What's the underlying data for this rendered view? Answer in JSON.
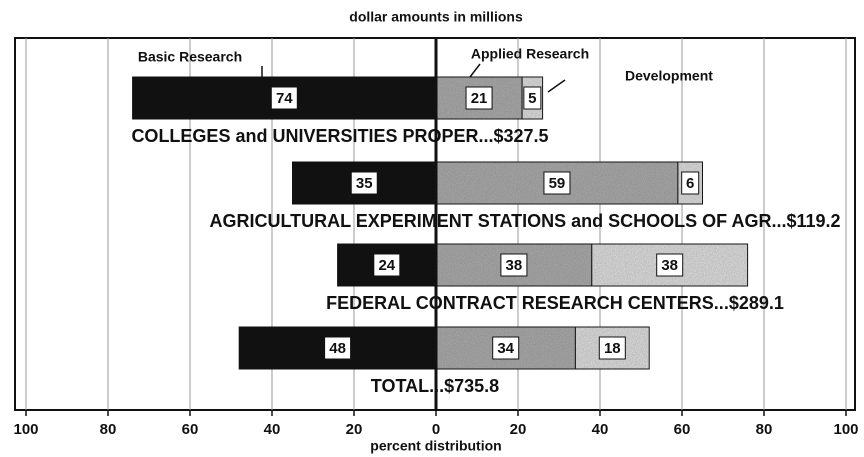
{
  "chart_data": {
    "type": "diverging_stacked_bar",
    "title": "dollar amounts in millions",
    "xlabel": "percent distribution",
    "categories": [
      "COLLEGES and UNIVERSITIES PROPER...$327.5",
      "AGRICULTURAL EXPERIMENT STATIONS and SCHOOLS OF AGR...$119.2",
      "FEDERAL CONTRACT RESEARCH CENTERS...$289.1",
      "TOTAL...$735.8"
    ],
    "series": [
      {
        "name": "Basic Research",
        "color": "#111111",
        "side": "left",
        "values": [
          74,
          35,
          24,
          48
        ]
      },
      {
        "name": "Applied Research",
        "color": "#a3a3a3",
        "side": "right",
        "values": [
          21,
          59,
          38,
          34
        ]
      },
      {
        "name": "Development",
        "color": "#d6d6d6",
        "side": "right",
        "values": [
          5,
          6,
          38,
          18
        ]
      }
    ],
    "xlim": [
      -100,
      100
    ],
    "xticks": [
      {
        "value": -100,
        "label": "100"
      },
      {
        "value": -80,
        "label": "80"
      },
      {
        "value": -60,
        "label": "60"
      },
      {
        "value": -40,
        "label": "40"
      },
      {
        "value": -20,
        "label": "20"
      },
      0,
      20,
      40,
      60,
      80,
      100
    ],
    "grid": true
  }
}
